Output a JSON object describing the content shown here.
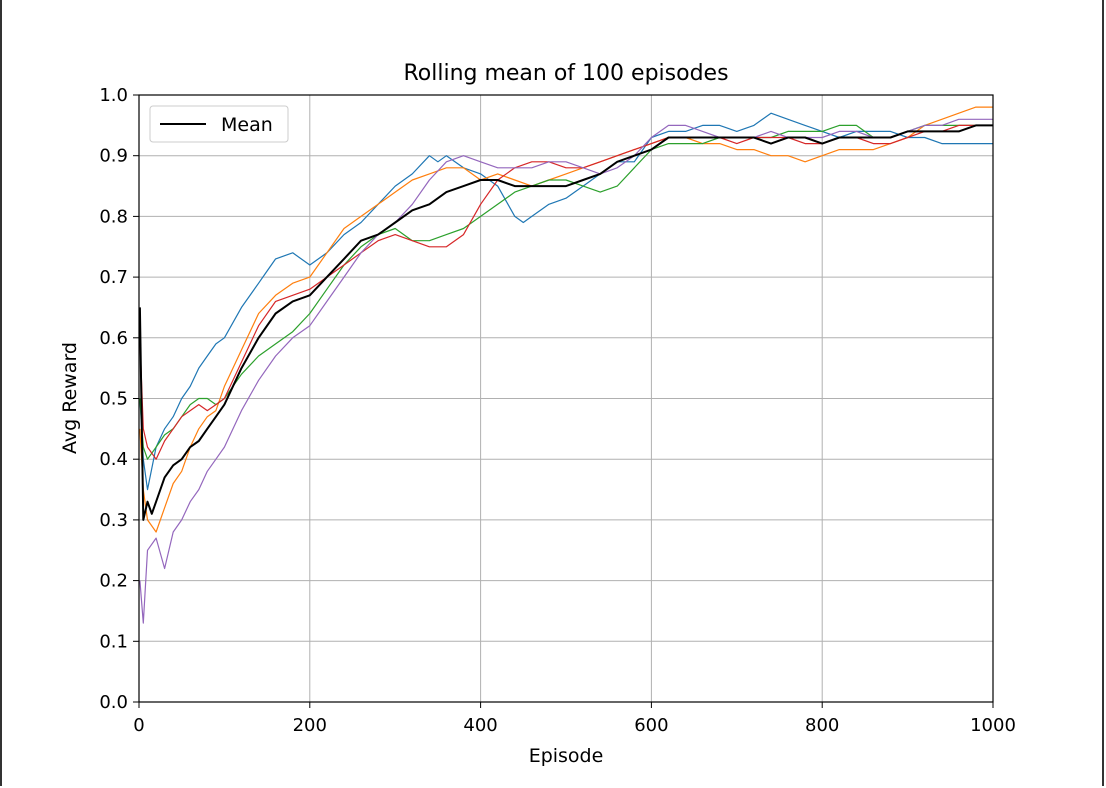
{
  "chart_data": {
    "type": "line",
    "title": "Rolling mean of 100 episodes",
    "xlabel": "Episode",
    "ylabel": "Avg Reward",
    "xlim": [
      0,
      1000
    ],
    "ylim": [
      0.0,
      1.0
    ],
    "xticks": [
      "0",
      "200",
      "400",
      "600",
      "800",
      "1000"
    ],
    "yticks": [
      "0.0",
      "0.1",
      "0.2",
      "0.3",
      "0.4",
      "0.5",
      "0.6",
      "0.7",
      "0.8",
      "0.9",
      "1.0"
    ],
    "grid": true,
    "legend": {
      "placement": "top-left",
      "entries": [
        "Mean"
      ]
    },
    "series": [
      {
        "color": "#1f77b4",
        "x": [
          1,
          5,
          10,
          20,
          30,
          40,
          50,
          60,
          70,
          80,
          90,
          100,
          120,
          140,
          150,
          160,
          180,
          200,
          220,
          240,
          260,
          280,
          300,
          320,
          340,
          350,
          360,
          380,
          400,
          420,
          440,
          450,
          460,
          480,
          500,
          520,
          540,
          560,
          580,
          600,
          620,
          640,
          660,
          680,
          700,
          720,
          740,
          760,
          780,
          800,
          820,
          840,
          860,
          880,
          900,
          920,
          940,
          960,
          980,
          1000
        ],
        "values": [
          0.5,
          0.4,
          0.35,
          0.42,
          0.45,
          0.47,
          0.5,
          0.52,
          0.55,
          0.57,
          0.59,
          0.6,
          0.65,
          0.69,
          0.71,
          0.73,
          0.74,
          0.72,
          0.74,
          0.77,
          0.79,
          0.82,
          0.85,
          0.87,
          0.9,
          0.89,
          0.9,
          0.88,
          0.87,
          0.85,
          0.8,
          0.79,
          0.8,
          0.82,
          0.83,
          0.85,
          0.87,
          0.89,
          0.89,
          0.93,
          0.94,
          0.94,
          0.95,
          0.95,
          0.94,
          0.95,
          0.97,
          0.96,
          0.95,
          0.94,
          0.93,
          0.94,
          0.94,
          0.94,
          0.93,
          0.93,
          0.92,
          0.92,
          0.92,
          0.92
        ]
      },
      {
        "color": "#ff7f0e",
        "x": [
          1,
          5,
          10,
          20,
          30,
          40,
          50,
          60,
          70,
          80,
          90,
          100,
          120,
          140,
          160,
          180,
          200,
          220,
          240,
          260,
          280,
          300,
          320,
          340,
          360,
          380,
          400,
          420,
          440,
          460,
          480,
          500,
          520,
          540,
          560,
          580,
          600,
          620,
          640,
          660,
          680,
          700,
          720,
          740,
          760,
          780,
          800,
          820,
          840,
          860,
          880,
          900,
          920,
          940,
          960,
          980,
          1000
        ],
        "values": [
          0.45,
          0.35,
          0.3,
          0.28,
          0.32,
          0.36,
          0.38,
          0.42,
          0.45,
          0.47,
          0.48,
          0.52,
          0.58,
          0.64,
          0.67,
          0.69,
          0.7,
          0.74,
          0.78,
          0.8,
          0.82,
          0.84,
          0.86,
          0.87,
          0.88,
          0.88,
          0.86,
          0.87,
          0.86,
          0.85,
          0.86,
          0.87,
          0.88,
          0.89,
          0.9,
          0.91,
          0.92,
          0.93,
          0.93,
          0.92,
          0.92,
          0.91,
          0.91,
          0.9,
          0.9,
          0.89,
          0.9,
          0.91,
          0.91,
          0.91,
          0.92,
          0.93,
          0.95,
          0.96,
          0.97,
          0.98,
          0.98
        ]
      },
      {
        "color": "#2ca02c",
        "x": [
          1,
          5,
          10,
          20,
          30,
          40,
          50,
          60,
          70,
          80,
          90,
          100,
          120,
          140,
          160,
          180,
          200,
          220,
          240,
          260,
          280,
          300,
          320,
          340,
          360,
          380,
          400,
          420,
          440,
          460,
          480,
          500,
          520,
          540,
          560,
          580,
          600,
          620,
          640,
          660,
          680,
          700,
          720,
          740,
          760,
          780,
          800,
          820,
          840,
          860,
          880,
          900,
          920,
          940,
          960,
          980,
          1000
        ],
        "values": [
          0.5,
          0.42,
          0.4,
          0.42,
          0.44,
          0.45,
          0.47,
          0.49,
          0.5,
          0.5,
          0.49,
          0.5,
          0.54,
          0.57,
          0.59,
          0.61,
          0.64,
          0.68,
          0.72,
          0.75,
          0.77,
          0.78,
          0.76,
          0.76,
          0.77,
          0.78,
          0.8,
          0.82,
          0.84,
          0.85,
          0.86,
          0.86,
          0.85,
          0.84,
          0.85,
          0.88,
          0.91,
          0.92,
          0.92,
          0.92,
          0.93,
          0.93,
          0.93,
          0.93,
          0.94,
          0.94,
          0.94,
          0.95,
          0.95,
          0.93,
          0.93,
          0.94,
          0.95,
          0.95,
          0.95,
          0.95,
          0.95
        ]
      },
      {
        "color": "#d62728",
        "x": [
          1,
          5,
          10,
          20,
          30,
          40,
          50,
          60,
          70,
          80,
          90,
          100,
          120,
          140,
          160,
          180,
          200,
          220,
          240,
          260,
          280,
          300,
          320,
          340,
          360,
          380,
          400,
          420,
          440,
          460,
          480,
          500,
          520,
          540,
          560,
          580,
          600,
          620,
          640,
          660,
          680,
          700,
          720,
          740,
          760,
          780,
          800,
          820,
          840,
          860,
          880,
          900,
          920,
          940,
          960,
          980,
          1000
        ],
        "values": [
          0.6,
          0.45,
          0.42,
          0.4,
          0.43,
          0.45,
          0.47,
          0.48,
          0.49,
          0.48,
          0.49,
          0.5,
          0.56,
          0.62,
          0.66,
          0.67,
          0.68,
          0.7,
          0.72,
          0.74,
          0.76,
          0.77,
          0.76,
          0.75,
          0.75,
          0.77,
          0.82,
          0.86,
          0.88,
          0.89,
          0.89,
          0.88,
          0.88,
          0.89,
          0.9,
          0.91,
          0.92,
          0.93,
          0.93,
          0.93,
          0.93,
          0.92,
          0.93,
          0.93,
          0.93,
          0.92,
          0.92,
          0.93,
          0.93,
          0.92,
          0.92,
          0.93,
          0.94,
          0.94,
          0.95,
          0.95,
          0.95
        ]
      },
      {
        "color": "#9467bd",
        "x": [
          1,
          5,
          10,
          20,
          30,
          40,
          50,
          60,
          70,
          80,
          90,
          100,
          120,
          140,
          160,
          180,
          200,
          220,
          240,
          260,
          280,
          300,
          320,
          340,
          360,
          380,
          400,
          420,
          440,
          460,
          480,
          500,
          520,
          540,
          560,
          580,
          600,
          620,
          640,
          660,
          680,
          700,
          720,
          740,
          760,
          780,
          800,
          820,
          840,
          860,
          880,
          900,
          920,
          940,
          960,
          980,
          1000
        ],
        "values": [
          0.2,
          0.13,
          0.25,
          0.27,
          0.22,
          0.28,
          0.3,
          0.33,
          0.35,
          0.38,
          0.4,
          0.42,
          0.48,
          0.53,
          0.57,
          0.6,
          0.62,
          0.66,
          0.7,
          0.74,
          0.77,
          0.79,
          0.82,
          0.86,
          0.89,
          0.9,
          0.89,
          0.88,
          0.88,
          0.88,
          0.89,
          0.89,
          0.88,
          0.87,
          0.88,
          0.9,
          0.93,
          0.95,
          0.95,
          0.94,
          0.93,
          0.93,
          0.93,
          0.94,
          0.93,
          0.93,
          0.93,
          0.94,
          0.94,
          0.93,
          0.93,
          0.94,
          0.95,
          0.95,
          0.96,
          0.96,
          0.96
        ]
      },
      {
        "name": "Mean",
        "color": "#000000",
        "x": [
          1,
          5,
          10,
          15,
          20,
          30,
          40,
          50,
          60,
          70,
          80,
          90,
          100,
          120,
          140,
          160,
          180,
          200,
          220,
          240,
          260,
          280,
          300,
          320,
          340,
          360,
          380,
          400,
          420,
          440,
          460,
          480,
          500,
          520,
          540,
          560,
          580,
          600,
          620,
          640,
          660,
          680,
          700,
          720,
          740,
          760,
          780,
          800,
          820,
          840,
          860,
          880,
          900,
          920,
          940,
          960,
          980,
          1000
        ],
        "values": [
          0.65,
          0.3,
          0.33,
          0.31,
          0.33,
          0.37,
          0.39,
          0.4,
          0.42,
          0.43,
          0.45,
          0.47,
          0.49,
          0.55,
          0.6,
          0.64,
          0.66,
          0.67,
          0.7,
          0.73,
          0.76,
          0.77,
          0.79,
          0.81,
          0.82,
          0.84,
          0.85,
          0.86,
          0.86,
          0.85,
          0.85,
          0.85,
          0.85,
          0.86,
          0.87,
          0.89,
          0.9,
          0.91,
          0.93,
          0.93,
          0.93,
          0.93,
          0.93,
          0.93,
          0.92,
          0.93,
          0.93,
          0.92,
          0.93,
          0.93,
          0.93,
          0.93,
          0.94,
          0.94,
          0.94,
          0.94,
          0.95,
          0.95
        ]
      }
    ]
  }
}
